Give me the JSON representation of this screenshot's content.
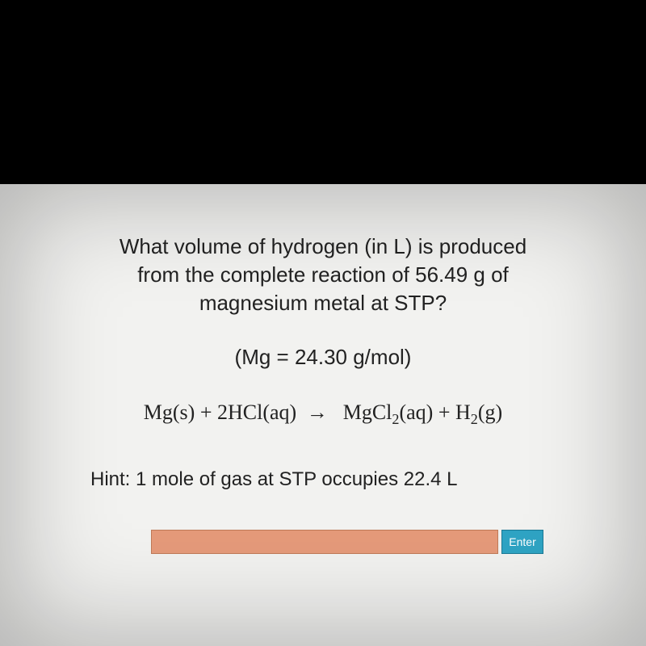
{
  "colors": {
    "page_bg": "#000000",
    "content_bg": "#f2f2f0",
    "text": "#222222",
    "input_bg": "#e59a7a",
    "input_border": "#c07a58",
    "button_bg": "#2fa4c4",
    "button_border": "#1c7a96",
    "button_text": "#ffffff"
  },
  "question": {
    "line1": "What volume of hydrogen (in L) is produced",
    "line2": "from the complete reaction of 56.49 g of",
    "line3": "magnesium metal at STP?"
  },
  "molar_mass": "(Mg = 24.30 g/mol)",
  "equation": {
    "lhs1": "Mg(s) + 2HCl(aq)",
    "arrow": "→",
    "rhs_pre": "MgCl",
    "rhs_sub1": "2",
    "rhs_mid": "(aq) + H",
    "rhs_sub2": "2",
    "rhs_end": "(g)"
  },
  "hint": "Hint:  1 mole of gas at STP occupies 22.4 L",
  "input": {
    "value": "",
    "placeholder": ""
  },
  "enter_label": "Enter"
}
